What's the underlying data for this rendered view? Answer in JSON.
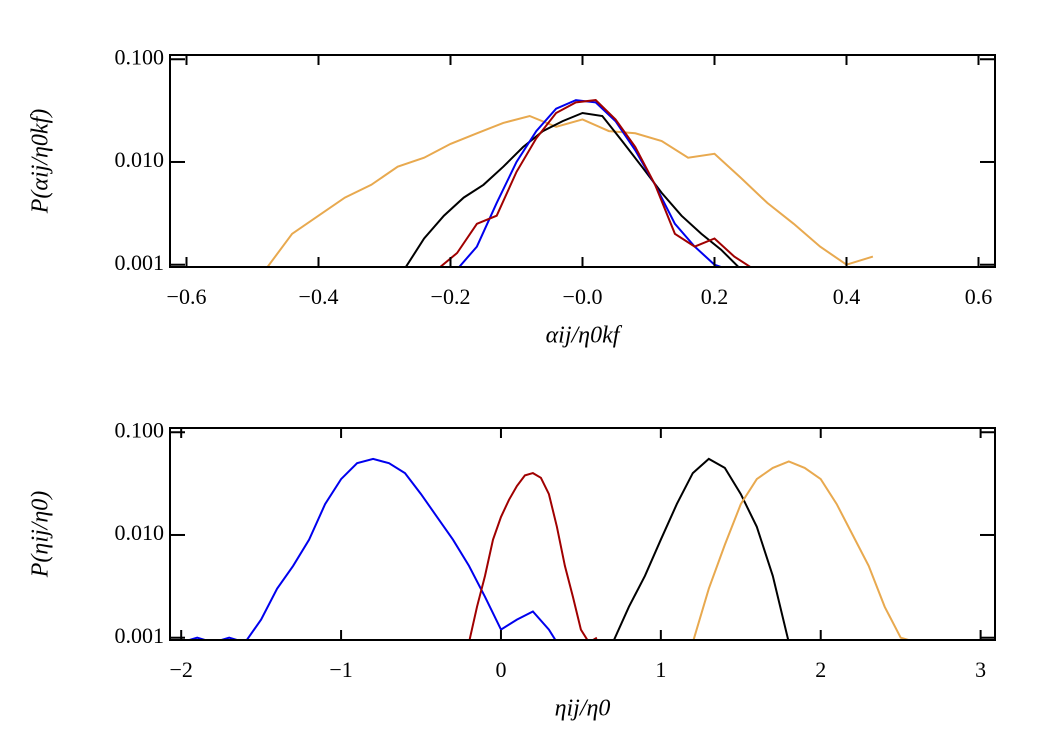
{
  "chart_data": [
    {
      "type": "line",
      "log_y": true,
      "xlabel": "αij/η0kf",
      "ylabel": "P(αij/η0kf)",
      "xlim": [
        -0.625,
        0.625
      ],
      "ylim": [
        0.00095,
        0.11
      ],
      "xticks": [
        {
          "value": -0.6,
          "label": "−0.6"
        },
        {
          "value": -0.4,
          "label": "−0.4"
        },
        {
          "value": -0.2,
          "label": "−0.2"
        },
        {
          "value": 0,
          "label": "−0.0"
        },
        0.2,
        0.4,
        0.6
      ],
      "yticks": [
        {
          "value": 0.001,
          "label": "0.001"
        },
        {
          "value": 0.01,
          "label": "0.010"
        },
        {
          "value": 0.1,
          "label": "0.100"
        }
      ],
      "series": [
        {
          "color": "#e8a94f",
          "x": [
            -0.48,
            -0.44,
            -0.4,
            -0.36,
            -0.32,
            -0.28,
            -0.24,
            -0.2,
            -0.16,
            -0.12,
            -0.08,
            -0.04,
            0.0,
            0.04,
            0.08,
            0.12,
            0.16,
            0.2,
            0.24,
            0.28,
            0.32,
            0.36,
            0.4,
            0.44
          ],
          "values": [
            0.0009,
            0.002,
            0.003,
            0.0045,
            0.006,
            0.009,
            0.011,
            0.015,
            0.019,
            0.024,
            0.028,
            0.022,
            0.026,
            0.02,
            0.019,
            0.016,
            0.011,
            0.012,
            0.007,
            0.004,
            0.0025,
            0.0015,
            0.001,
            0.0012
          ]
        },
        {
          "color": "#000000",
          "x": [
            -0.27,
            -0.24,
            -0.21,
            -0.18,
            -0.15,
            -0.12,
            -0.09,
            -0.06,
            -0.03,
            0.0,
            0.03,
            0.06,
            0.09,
            0.12,
            0.15,
            0.18,
            0.21,
            0.24
          ],
          "values": [
            0.0009,
            0.0018,
            0.003,
            0.0045,
            0.006,
            0.009,
            0.014,
            0.02,
            0.025,
            0.03,
            0.028,
            0.016,
            0.009,
            0.005,
            0.003,
            0.002,
            0.0014,
            0.0009
          ]
        },
        {
          "color": "#0000ee",
          "x": [
            -0.19,
            -0.16,
            -0.13,
            -0.1,
            -0.07,
            -0.04,
            -0.01,
            0.02,
            0.05,
            0.08,
            0.11,
            0.14,
            0.17,
            0.2,
            0.22
          ],
          "values": [
            0.0009,
            0.0015,
            0.004,
            0.01,
            0.02,
            0.033,
            0.04,
            0.038,
            0.025,
            0.013,
            0.006,
            0.0025,
            0.0015,
            0.001,
            0.0009
          ]
        },
        {
          "color": "#a00000",
          "x": [
            -0.22,
            -0.19,
            -0.16,
            -0.13,
            -0.1,
            -0.07,
            -0.04,
            -0.01,
            0.02,
            0.05,
            0.08,
            0.11,
            0.14,
            0.17,
            0.2,
            0.23,
            0.26
          ],
          "values": [
            0.0009,
            0.0013,
            0.0025,
            0.003,
            0.008,
            0.017,
            0.03,
            0.038,
            0.04,
            0.026,
            0.014,
            0.006,
            0.002,
            0.0015,
            0.0018,
            0.0012,
            0.0009
          ]
        }
      ]
    },
    {
      "type": "line",
      "log_y": true,
      "xlabel": "ηij/η0",
      "ylabel": "P(ηij/η0)",
      "xlim": [
        -2.07,
        3.09
      ],
      "ylim": [
        0.00095,
        0.11
      ],
      "xticks": [
        {
          "value": -2,
          "label": "−2"
        },
        {
          "value": -1,
          "label": "−1"
        },
        0,
        1,
        2,
        3
      ],
      "yticks": [
        {
          "value": 0.001,
          "label": "0.001"
        },
        {
          "value": 0.01,
          "label": "0.010"
        },
        {
          "value": 0.1,
          "label": "0.100"
        }
      ],
      "series": [
        {
          "color": "#0000ee",
          "x": [
            -2.0,
            -1.9,
            -1.8,
            -1.7,
            -1.6,
            -1.5,
            -1.4,
            -1.3,
            -1.2,
            -1.1,
            -1.0,
            -0.9,
            -0.8,
            -0.7,
            -0.6,
            -0.5,
            -0.4,
            -0.3,
            -0.2,
            -0.1,
            0.0,
            0.1,
            0.2,
            0.3,
            0.35
          ],
          "values": [
            0.0009,
            0.001,
            0.0009,
            0.001,
            0.0009,
            0.0015,
            0.003,
            0.005,
            0.009,
            0.02,
            0.035,
            0.05,
            0.055,
            0.05,
            0.04,
            0.025,
            0.015,
            0.009,
            0.005,
            0.0025,
            0.0012,
            0.0015,
            0.0018,
            0.0012,
            0.0009
          ]
        },
        {
          "color": "#a00000",
          "x": [
            -0.2,
            -0.15,
            -0.1,
            -0.05,
            0.0,
            0.05,
            0.1,
            0.15,
            0.2,
            0.25,
            0.3,
            0.35,
            0.4,
            0.45,
            0.5,
            0.55,
            0.6
          ],
          "values": [
            0.0009,
            0.002,
            0.004,
            0.009,
            0.015,
            0.022,
            0.03,
            0.038,
            0.04,
            0.036,
            0.025,
            0.012,
            0.005,
            0.0025,
            0.0012,
            0.0009,
            0.001
          ]
        },
        {
          "color": "#000000",
          "x": [
            0.7,
            0.8,
            0.9,
            1.0,
            1.1,
            1.2,
            1.3,
            1.4,
            1.5,
            1.6,
            1.7,
            1.8
          ],
          "values": [
            0.0009,
            0.002,
            0.004,
            0.009,
            0.02,
            0.04,
            0.055,
            0.045,
            0.025,
            0.012,
            0.004,
            0.0009
          ]
        },
        {
          "color": "#e8a94f",
          "x": [
            1.2,
            1.3,
            1.4,
            1.5,
            1.6,
            1.7,
            1.8,
            1.9,
            2.0,
            2.1,
            2.2,
            2.3,
            2.4,
            2.5,
            2.6
          ],
          "values": [
            0.0009,
            0.003,
            0.008,
            0.02,
            0.035,
            0.045,
            0.052,
            0.045,
            0.035,
            0.02,
            0.01,
            0.005,
            0.002,
            0.001,
            0.0009
          ]
        }
      ]
    }
  ]
}
